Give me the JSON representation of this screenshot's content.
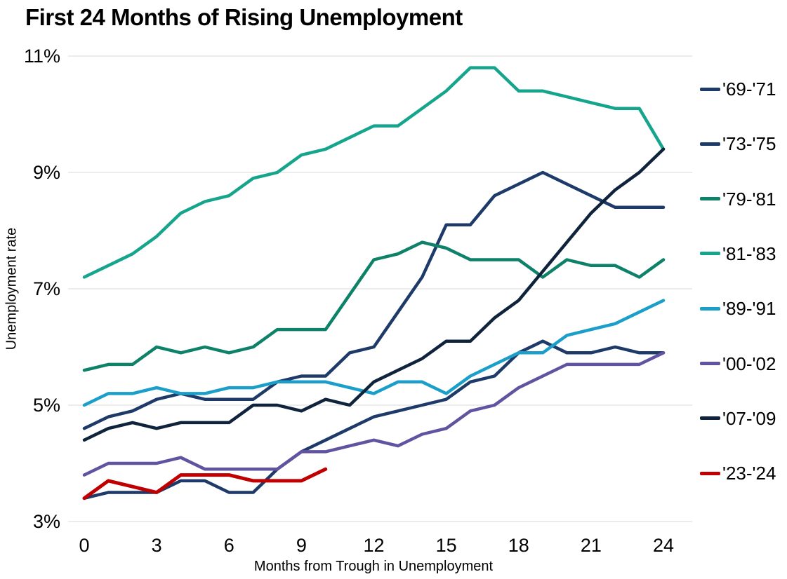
{
  "chart_data": {
    "type": "line",
    "title": "First 24 Months of Rising Unemployment",
    "xlabel": "Months from Trough in Unemployment",
    "ylabel": "Unemployment rate",
    "xlim": [
      0,
      24
    ],
    "ylim": [
      3,
      11
    ],
    "x_ticks": [
      0,
      3,
      6,
      9,
      12,
      15,
      18,
      21,
      24
    ],
    "y_ticks": [
      {
        "value": 11,
        "label": "11%"
      },
      {
        "value": 9,
        "label": "9%"
      },
      {
        "value": 7,
        "label": "7%"
      },
      {
        "value": 5,
        "label": "5%"
      },
      {
        "value": 3,
        "label": "3%"
      }
    ],
    "grid": "horizontal",
    "grid_color": "#d9d9d9",
    "legend_position": "right",
    "x_unit": "months from trough",
    "series": [
      {
        "id": "69-71",
        "name": "'69-'71",
        "color": "#1e3a68",
        "stroke_width": 4.5,
        "values": [
          3.4,
          3.5,
          3.5,
          3.5,
          3.7,
          3.7,
          3.5,
          3.5,
          3.9,
          4.2,
          4.4,
          4.6,
          4.8,
          4.9,
          5.0,
          5.1,
          5.4,
          5.5,
          5.9,
          6.1,
          5.9,
          5.9,
          6.0,
          5.9,
          5.9
        ]
      },
      {
        "id": "73-75",
        "name": "'73-'75",
        "color": "#1e3a68",
        "stroke_width": 4.5,
        "values": [
          4.6,
          4.8,
          4.9,
          5.1,
          5.2,
          5.1,
          5.1,
          5.1,
          5.4,
          5.5,
          5.5,
          5.9,
          6.0,
          6.6,
          7.2,
          8.1,
          8.1,
          8.6,
          8.8,
          9.0,
          8.8,
          8.6,
          8.4,
          8.4,
          8.4
        ]
      },
      {
        "id": "79-81",
        "name": "'79-'81",
        "color": "#0e8169",
        "stroke_width": 4.5,
        "values": [
          5.6,
          5.7,
          5.7,
          6.0,
          5.9,
          6.0,
          5.9,
          6.0,
          6.3,
          6.3,
          6.3,
          6.9,
          7.5,
          7.6,
          7.8,
          7.7,
          7.5,
          7.5,
          7.5,
          7.2,
          7.5,
          7.4,
          7.4,
          7.2,
          7.5
        ]
      },
      {
        "id": "81-83",
        "name": "'81-'83",
        "color": "#15a48c",
        "stroke_width": 4.5,
        "values": [
          7.2,
          7.4,
          7.6,
          7.9,
          8.3,
          8.5,
          8.6,
          8.9,
          9.0,
          9.3,
          9.4,
          9.6,
          9.8,
          9.8,
          10.1,
          10.4,
          10.8,
          10.8,
          10.4,
          10.4,
          10.3,
          10.2,
          10.1,
          10.1,
          9.4
        ]
      },
      {
        "id": "89-91",
        "name": "'89-'91",
        "color": "#1b9fca",
        "stroke_width": 4.5,
        "values": [
          5.0,
          5.2,
          5.2,
          5.3,
          5.2,
          5.2,
          5.3,
          5.3,
          5.4,
          5.4,
          5.4,
          5.3,
          5.2,
          5.4,
          5.4,
          5.2,
          5.5,
          5.7,
          5.9,
          5.9,
          6.2,
          6.3,
          6.4,
          6.6,
          6.8
        ]
      },
      {
        "id": "00-02",
        "name": "'00-'02",
        "color": "#61539f",
        "stroke_width": 4.5,
        "values": [
          3.8,
          4.0,
          4.0,
          4.0,
          4.1,
          3.9,
          3.9,
          3.9,
          3.9,
          4.2,
          4.2,
          4.3,
          4.4,
          4.3,
          4.5,
          4.6,
          4.9,
          5.0,
          5.3,
          5.5,
          5.7,
          5.7,
          5.7,
          5.7,
          5.9
        ]
      },
      {
        "id": "07-09",
        "name": "'07-'09",
        "color": "#0f243c",
        "stroke_width": 4.5,
        "values": [
          4.4,
          4.6,
          4.7,
          4.6,
          4.7,
          4.7,
          4.7,
          5.0,
          5.0,
          4.9,
          5.1,
          5.0,
          5.4,
          5.6,
          5.8,
          6.1,
          6.1,
          6.5,
          6.8,
          7.3,
          7.8,
          8.3,
          8.7,
          9.0,
          9.4
        ]
      },
      {
        "id": "23-24",
        "name": "'23-'24",
        "color": "#c00000",
        "stroke_width": 5,
        "values": [
          3.4,
          3.7,
          3.6,
          3.5,
          3.8,
          3.8,
          3.8,
          3.7,
          3.7,
          3.7,
          3.9
        ]
      }
    ]
  }
}
